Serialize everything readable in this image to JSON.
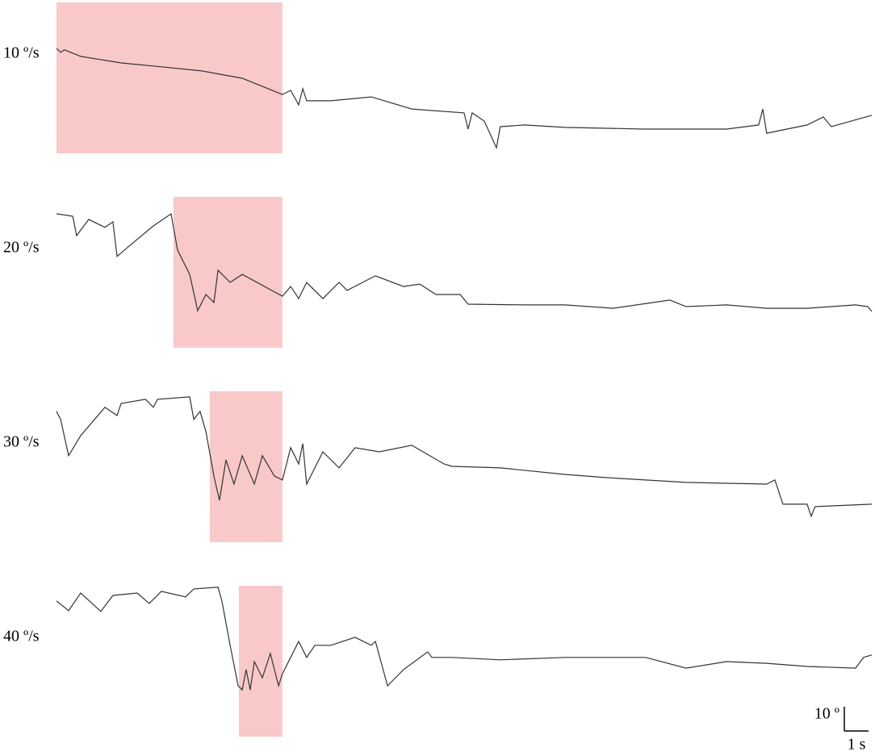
{
  "chart_data": [
    {
      "type": "line",
      "label": "10 º/s",
      "color": "#333333",
      "highlight": [
        0,
        9.33
      ],
      "highlight_color": "#f9c9c9",
      "xlim": [
        0,
        33.67
      ],
      "ylim": [
        0,
        62.3
      ],
      "x": [
        0,
        0.17,
        0.33,
        1,
        2.67,
        4.33,
        6,
        7.67,
        9.33,
        9.67,
        10,
        10.17,
        10.33,
        11.33,
        13,
        14.67,
        16.83,
        17,
        17.17,
        17.67,
        18.17,
        18.33,
        19.33,
        21,
        24.33,
        27.67,
        29,
        29.17,
        29.33,
        31,
        31.67,
        32,
        33.67
      ],
      "series": [
        {
          "values": [
            43.3,
            41.7,
            42.7,
            40,
            37.3,
            35.7,
            34,
            31,
            24.3,
            26,
            20,
            26.7,
            21.7,
            21.7,
            23.3,
            18.3,
            16.7,
            10,
            16.7,
            13.3,
            2.3,
            11,
            11.7,
            10.7,
            10,
            10,
            11.7,
            18.3,
            8.3,
            11.7,
            15,
            11,
            15.7
          ]
        }
      ]
    },
    {
      "type": "line",
      "label": "20 º/s",
      "color": "#333333",
      "highlight": [
        4.83,
        9.33
      ],
      "highlight_color": "#f9c9c9",
      "xlim": [
        0,
        33.67
      ],
      "ylim": [
        0,
        62.3
      ],
      "x": [
        0,
        0.67,
        0.83,
        1.33,
        2,
        2.33,
        2.5,
        3,
        4,
        4.73,
        5,
        5.5,
        5.83,
        6.17,
        6.5,
        6.67,
        7.17,
        7.67,
        9.33,
        9.67,
        10,
        10.33,
        11,
        11.67,
        12,
        13.17,
        14.33,
        15,
        15.67,
        16.67,
        17,
        19.33,
        21,
        23,
        25.33,
        26,
        27.67,
        29.33,
        31,
        33,
        33.5,
        33.67
      ],
      "series": [
        {
          "values": [
            55.3,
            54.3,
            46.3,
            53,
            49.7,
            52,
            37.7,
            42,
            50.3,
            55.3,
            40.3,
            30.3,
            15.3,
            22,
            18.7,
            32,
            27,
            30.3,
            21.3,
            25.3,
            20.3,
            27,
            20.3,
            27,
            23.7,
            29.7,
            25.3,
            26.3,
            22,
            22,
            18,
            17.7,
            17.7,
            16.3,
            19.7,
            17,
            17.7,
            16.3,
            16.3,
            17.7,
            17,
            15
          ]
        }
      ]
    },
    {
      "type": "line",
      "label": "30 º/s",
      "color": "#333333",
      "highlight": [
        6.33,
        9.33
      ],
      "highlight_color": "#f9c9c9",
      "xlim": [
        0,
        33.67
      ],
      "ylim": [
        0,
        62.3
      ],
      "x": [
        0,
        0.17,
        0.5,
        1,
        2,
        2.5,
        2.67,
        3.67,
        4,
        4.17,
        5.5,
        5.67,
        5.93,
        6.17,
        6.5,
        6.73,
        7,
        7.33,
        7.67,
        8.17,
        8.5,
        9,
        9.33,
        9.67,
        10,
        10.17,
        10.33,
        11,
        11.67,
        12.33,
        13.33,
        14.67,
        16,
        16.33,
        18.33,
        21,
        22.67,
        26,
        29.33,
        29.67,
        30,
        31,
        31.17,
        31.33,
        33.67
      ],
      "series": [
        {
          "values": [
            54,
            50.7,
            35.7,
            44,
            55.7,
            52.3,
            57.3,
            59,
            55.7,
            59,
            60,
            50.7,
            54,
            45.7,
            27.3,
            17.3,
            34,
            24,
            35.7,
            24,
            35.7,
            27.3,
            25.7,
            39,
            32.3,
            40.7,
            24,
            37.3,
            30.7,
            39,
            37.3,
            40,
            32.3,
            31.3,
            30.7,
            28,
            26.7,
            24.7,
            24,
            25.7,
            15.7,
            15.7,
            10.7,
            14.7,
            15.7
          ]
        }
      ]
    },
    {
      "type": "line",
      "label": "40 º/s",
      "color": "#333333",
      "highlight": [
        7.53,
        9.33
      ],
      "highlight_color": "#f9c9c9",
      "xlim": [
        0,
        33.67
      ],
      "ylim": [
        0,
        62.3
      ],
      "x": [
        0,
        0.5,
        1,
        1.83,
        2.33,
        3.33,
        3.83,
        4.33,
        5.33,
        5.67,
        6.67,
        6.83,
        7.17,
        7.5,
        7.67,
        7.83,
        8,
        8.17,
        8.5,
        8.83,
        9.17,
        9.33,
        9.67,
        10,
        10.33,
        10.67,
        11.33,
        12.33,
        13,
        13.17,
        13.67,
        14.33,
        15.33,
        15.5,
        16.33,
        18.33,
        21,
        24.33,
        26,
        27.67,
        29.33,
        31,
        33,
        33.33,
        33.67
      ],
      "series": [
        {
          "values": [
            56,
            52,
            59.3,
            51.7,
            58.3,
            59.3,
            55,
            60,
            57.7,
            61,
            61.7,
            56,
            37.7,
            21,
            19.3,
            27.7,
            19.3,
            31,
            24.3,
            34.3,
            21,
            26,
            32.7,
            39.3,
            32.7,
            37.7,
            37.7,
            41,
            37.7,
            39.3,
            21,
            27.7,
            35,
            32.7,
            32.7,
            31.7,
            32.7,
            32.7,
            28.3,
            31,
            30.3,
            29,
            28.3,
            32.7,
            33.7
          ]
        }
      ]
    }
  ],
  "scale_bar": {
    "y_label": "10 º",
    "y_value": 10,
    "x_label": "1 s",
    "x_value": 1
  }
}
